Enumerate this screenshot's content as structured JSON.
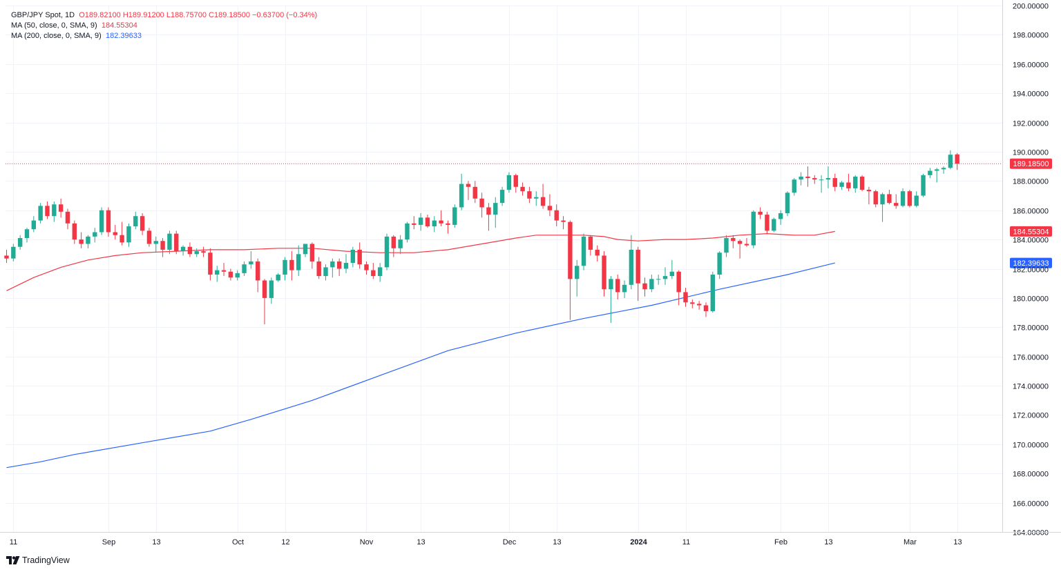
{
  "legend": {
    "symbol": "GBP/JPY Spot, 1D",
    "ohlc": "O189.82100  H189.91200  L188.75700  C189.18500  −0.63700 (−0.34%)",
    "ma50_label": "MA (50, close, 0, SMA, 9)",
    "ma50_value": "184.55304",
    "ma200_label": "MA (200, close, 0, SMA, 9)",
    "ma200_value": "182.39633"
  },
  "brand": {
    "name": "TradingView",
    "logo_icon": "tradingview-logo-icon"
  },
  "colors": {
    "up": "#22ab94",
    "down": "#f23645",
    "ma50": "#f23645",
    "ma200": "#2962ff",
    "grid": "#f0f3fa",
    "axis_text": "#131722"
  },
  "chart_data": {
    "type": "candlestick",
    "title": "GBP/JPY Spot, 1D",
    "ylim": [
      164,
      200
    ],
    "y_ticks": [
      "200.00000",
      "198.00000",
      "196.00000",
      "194.00000",
      "192.00000",
      "190.00000",
      "188.00000",
      "186.00000",
      "184.00000",
      "182.00000",
      "180.00000",
      "178.00000",
      "176.00000",
      "174.00000",
      "172.00000",
      "170.00000",
      "168.00000",
      "166.00000",
      "164.00000"
    ],
    "x_ticks": [
      {
        "label": "11",
        "index": 1,
        "bold": false
      },
      {
        "label": "Sep",
        "index": 15,
        "bold": false
      },
      {
        "label": "13",
        "index": 22,
        "bold": false
      },
      {
        "label": "Oct",
        "index": 34,
        "bold": false
      },
      {
        "label": "12",
        "index": 41,
        "bold": false
      },
      {
        "label": "Nov",
        "index": 53,
        "bold": false
      },
      {
        "label": "13",
        "index": 61,
        "bold": false
      },
      {
        "label": "Dec",
        "index": 74,
        "bold": false
      },
      {
        "label": "13",
        "index": 81,
        "bold": false
      },
      {
        "label": "2024",
        "index": 93,
        "bold": true
      },
      {
        "label": "11",
        "index": 100,
        "bold": false
      },
      {
        "label": "Feb",
        "index": 114,
        "bold": false
      },
      {
        "label": "13",
        "index": 121,
        "bold": false
      },
      {
        "label": "Mar",
        "index": 133,
        "bold": false
      },
      {
        "label": "13",
        "index": 140,
        "bold": false
      }
    ],
    "last_price": {
      "value": 189.185,
      "label": "189.18500"
    },
    "ma_markers": [
      {
        "name": "MA 50",
        "value": 184.55304,
        "label": "184.55304"
      },
      {
        "name": "MA 200",
        "value": 182.39633,
        "label": "182.39633"
      }
    ],
    "series": [
      {
        "name": "GBP/JPY OHLC",
        "type": "candlestick",
        "ohlc": [
          [
            182.9,
            183.3,
            182.4,
            182.7
          ],
          [
            182.7,
            183.7,
            182.5,
            183.5
          ],
          [
            183.5,
            184.3,
            183.3,
            184.1
          ],
          [
            184.1,
            184.8,
            183.8,
            184.7
          ],
          [
            184.7,
            185.6,
            184.5,
            185.3
          ],
          [
            185.3,
            186.5,
            185.1,
            186.3
          ],
          [
            186.3,
            186.6,
            185.4,
            185.6
          ],
          [
            185.6,
            186.6,
            185.2,
            186.4
          ],
          [
            186.4,
            186.8,
            185.5,
            185.9
          ],
          [
            185.9,
            186.1,
            184.7,
            185.1
          ],
          [
            185.1,
            185.3,
            183.7,
            184.0
          ],
          [
            184.0,
            184.5,
            183.4,
            183.7
          ],
          [
            183.7,
            184.3,
            183.4,
            184.2
          ],
          [
            184.2,
            184.8,
            183.8,
            184.5
          ],
          [
            184.5,
            186.2,
            184.3,
            186.0
          ],
          [
            186.0,
            186.2,
            184.2,
            184.5
          ],
          [
            184.5,
            185.0,
            184.0,
            184.3
          ],
          [
            184.3,
            185.2,
            183.6,
            183.8
          ],
          [
            183.8,
            185.1,
            183.5,
            184.9
          ],
          [
            184.9,
            185.9,
            184.7,
            185.6
          ],
          [
            185.6,
            185.8,
            184.3,
            184.6
          ],
          [
            184.6,
            184.8,
            183.5,
            183.7
          ],
          [
            183.7,
            184.2,
            183.1,
            183.9
          ],
          [
            183.9,
            184.1,
            182.8,
            183.3
          ],
          [
            183.3,
            184.6,
            183.0,
            184.4
          ],
          [
            184.4,
            184.6,
            183.0,
            183.2
          ],
          [
            183.2,
            183.6,
            182.9,
            183.5
          ],
          [
            183.5,
            183.8,
            182.8,
            183.0
          ],
          [
            183.0,
            183.4,
            182.8,
            183.2
          ],
          [
            183.2,
            183.5,
            182.8,
            183.1
          ],
          [
            183.1,
            183.4,
            181.2,
            181.6
          ],
          [
            181.6,
            182.2,
            181.1,
            181.9
          ],
          [
            181.9,
            182.4,
            181.5,
            181.8
          ],
          [
            181.8,
            182.0,
            181.2,
            181.4
          ],
          [
            181.4,
            181.9,
            181.2,
            181.7
          ],
          [
            181.7,
            182.5,
            181.5,
            182.3
          ],
          [
            182.3,
            183.2,
            182.0,
            182.5
          ],
          [
            182.5,
            182.7,
            180.4,
            181.2
          ],
          [
            181.2,
            181.3,
            178.2,
            180.0
          ],
          [
            180.0,
            181.4,
            179.6,
            181.2
          ],
          [
            181.2,
            181.7,
            181.1,
            181.6
          ],
          [
            181.6,
            182.8,
            181.2,
            182.6
          ],
          [
            182.6,
            183.2,
            181.2,
            181.9
          ],
          [
            181.9,
            183.6,
            181.5,
            183.0
          ],
          [
            183.0,
            183.7,
            182.8,
            183.7
          ],
          [
            183.7,
            183.8,
            182.0,
            182.5
          ],
          [
            182.5,
            182.8,
            181.3,
            181.5
          ],
          [
            181.5,
            182.3,
            181.2,
            182.1
          ],
          [
            182.1,
            182.7,
            181.4,
            182.5
          ],
          [
            182.5,
            182.7,
            181.5,
            182.0
          ],
          [
            182.0,
            183.0,
            181.7,
            182.4
          ],
          [
            182.4,
            183.5,
            182.1,
            183.3
          ],
          [
            183.3,
            183.8,
            182.0,
            182.3
          ],
          [
            182.3,
            182.5,
            181.6,
            181.9
          ],
          [
            181.9,
            182.4,
            181.3,
            181.5
          ],
          [
            181.5,
            182.4,
            181.1,
            182.1
          ],
          [
            182.1,
            184.4,
            181.9,
            184.2
          ],
          [
            184.2,
            184.3,
            182.8,
            183.4
          ],
          [
            183.4,
            184.3,
            183.0,
            184.0
          ],
          [
            184.0,
            185.2,
            183.8,
            185.1
          ],
          [
            185.1,
            185.6,
            184.7,
            185.0
          ],
          [
            185.0,
            185.8,
            184.6,
            185.5
          ],
          [
            185.5,
            185.7,
            184.8,
            184.9
          ],
          [
            184.9,
            185.6,
            184.5,
            185.3
          ],
          [
            185.3,
            186.0,
            184.9,
            185.1
          ],
          [
            185.1,
            185.3,
            184.4,
            185.0
          ],
          [
            185.0,
            186.4,
            184.8,
            186.2
          ],
          [
            186.2,
            188.5,
            186.0,
            187.8
          ],
          [
            187.8,
            188.0,
            186.7,
            187.6
          ],
          [
            187.6,
            188.0,
            186.5,
            186.8
          ],
          [
            186.8,
            187.2,
            185.5,
            186.2
          ],
          [
            186.2,
            186.5,
            184.6,
            185.7
          ],
          [
            185.7,
            186.9,
            184.8,
            186.5
          ],
          [
            186.5,
            187.6,
            186.3,
            187.4
          ],
          [
            187.4,
            188.6,
            187.2,
            188.4
          ],
          [
            188.4,
            188.5,
            187.2,
            187.6
          ],
          [
            187.6,
            187.9,
            187.0,
            187.3
          ],
          [
            187.3,
            187.6,
            186.5,
            186.8
          ],
          [
            186.8,
            187.3,
            186.3,
            186.9
          ],
          [
            186.9,
            187.8,
            186.1,
            186.3
          ],
          [
            186.3,
            187.1,
            185.6,
            186.0
          ],
          [
            186.0,
            186.4,
            184.9,
            185.3
          ],
          [
            185.3,
            185.6,
            184.7,
            185.2
          ],
          [
            185.2,
            185.3,
            178.5,
            181.3
          ],
          [
            181.3,
            182.6,
            180.1,
            182.2
          ],
          [
            182.2,
            184.4,
            181.9,
            184.2
          ],
          [
            184.2,
            184.3,
            182.9,
            183.3
          ],
          [
            183.3,
            183.6,
            182.5,
            182.9
          ],
          [
            182.9,
            183.2,
            180.1,
            180.6
          ],
          [
            180.6,
            181.5,
            178.3,
            181.3
          ],
          [
            181.3,
            181.6,
            179.9,
            180.4
          ],
          [
            180.4,
            181.2,
            180.0,
            180.9
          ],
          [
            180.9,
            184.3,
            180.6,
            183.3
          ],
          [
            183.3,
            183.5,
            179.8,
            181.0
          ],
          [
            181.0,
            181.4,
            180.1,
            180.6
          ],
          [
            180.6,
            181.6,
            180.4,
            181.3
          ],
          [
            181.3,
            181.6,
            180.9,
            181.3
          ],
          [
            181.3,
            182.1,
            180.9,
            181.5
          ],
          [
            181.5,
            182.6,
            181.3,
            181.8
          ],
          [
            181.8,
            181.9,
            179.5,
            180.4
          ],
          [
            180.4,
            180.7,
            179.4,
            179.7
          ],
          [
            179.7,
            179.9,
            179.3,
            179.6
          ],
          [
            179.6,
            179.8,
            179.2,
            179.5
          ],
          [
            179.5,
            179.7,
            178.7,
            179.1
          ],
          [
            179.1,
            181.8,
            179.0,
            181.6
          ],
          [
            181.6,
            183.2,
            181.3,
            183.1
          ],
          [
            183.1,
            184.3,
            182.8,
            184.1
          ],
          [
            184.1,
            184.3,
            183.4,
            183.9
          ],
          [
            183.9,
            184.0,
            182.7,
            183.7
          ],
          [
            183.7,
            184.1,
            183.5,
            183.6
          ],
          [
            183.6,
            186.0,
            183.4,
            185.9
          ],
          [
            185.9,
            186.2,
            185.4,
            185.7
          ],
          [
            185.7,
            185.9,
            184.4,
            184.6
          ],
          [
            184.6,
            185.5,
            184.5,
            185.4
          ],
          [
            185.4,
            186.0,
            185.0,
            185.8
          ],
          [
            185.8,
            187.3,
            185.6,
            187.2
          ],
          [
            187.2,
            188.2,
            187.0,
            188.1
          ],
          [
            188.1,
            188.6,
            187.7,
            188.3
          ],
          [
            188.3,
            189.0,
            187.6,
            188.2
          ],
          [
            188.2,
            188.4,
            187.8,
            188.1
          ],
          [
            188.1,
            188.4,
            187.2,
            188.1
          ],
          [
            188.1,
            189.0,
            187.5,
            188.2
          ],
          [
            188.2,
            188.5,
            187.3,
            187.6
          ],
          [
            187.6,
            188.0,
            187.4,
            187.9
          ],
          [
            187.9,
            188.5,
            187.3,
            187.5
          ],
          [
            187.5,
            188.4,
            187.2,
            188.3
          ],
          [
            188.3,
            188.4,
            187.3,
            187.4
          ],
          [
            187.4,
            187.6,
            186.4,
            187.3
          ],
          [
            187.3,
            187.4,
            186.2,
            186.4
          ],
          [
            186.4,
            187.2,
            185.2,
            187.1
          ],
          [
            187.1,
            187.4,
            186.4,
            186.5
          ],
          [
            186.5,
            187.1,
            186.1,
            186.3
          ],
          [
            186.3,
            187.5,
            186.2,
            187.3
          ],
          [
            187.3,
            187.4,
            186.2,
            186.3
          ],
          [
            186.3,
            187.3,
            186.2,
            187.0
          ],
          [
            187.0,
            188.5,
            186.9,
            188.4
          ],
          [
            188.4,
            188.9,
            188.2,
            188.7
          ],
          [
            188.7,
            188.9,
            187.9,
            188.8
          ],
          [
            188.8,
            189.0,
            188.5,
            188.9
          ],
          [
            188.9,
            190.1,
            188.8,
            189.8
          ],
          [
            189.82,
            189.912,
            188.757,
            189.185
          ]
        ]
      },
      {
        "name": "MA (50, close, 0, SMA, 9)",
        "type": "line",
        "color": "#f23645",
        "points": [
          [
            0,
            180.5
          ],
          [
            4,
            181.4
          ],
          [
            8,
            182.1
          ],
          [
            12,
            182.6
          ],
          [
            16,
            182.9
          ],
          [
            20,
            183.1
          ],
          [
            25,
            183.2
          ],
          [
            30,
            183.3
          ],
          [
            35,
            183.3
          ],
          [
            40,
            183.4
          ],
          [
            45,
            183.4
          ],
          [
            50,
            183.2
          ],
          [
            55,
            183.1
          ],
          [
            60,
            183.1
          ],
          [
            65,
            183.3
          ],
          [
            70,
            183.7
          ],
          [
            75,
            184.1
          ],
          [
            78,
            184.3
          ],
          [
            80,
            184.3
          ],
          [
            85,
            184.3
          ],
          [
            88,
            184.2
          ],
          [
            90,
            184.0
          ],
          [
            93,
            183.9
          ],
          [
            97,
            184.0
          ],
          [
            100,
            184.0
          ],
          [
            104,
            184.1
          ],
          [
            108,
            184.3
          ],
          [
            112,
            184.4
          ],
          [
            116,
            184.3
          ],
          [
            119,
            184.3
          ],
          [
            122,
            184.55304
          ]
        ]
      },
      {
        "name": "MA (200, close, 0, SMA, 9)",
        "type": "line",
        "color": "#2962ff",
        "points": [
          [
            0,
            168.4
          ],
          [
            5,
            168.8
          ],
          [
            10,
            169.3
          ],
          [
            20,
            170.1
          ],
          [
            30,
            170.9
          ],
          [
            36,
            171.7
          ],
          [
            45,
            173.0
          ],
          [
            55,
            174.7
          ],
          [
            65,
            176.4
          ],
          [
            75,
            177.6
          ],
          [
            85,
            178.6
          ],
          [
            95,
            179.5
          ],
          [
            105,
            180.6
          ],
          [
            115,
            181.6
          ],
          [
            122,
            182.39633
          ]
        ]
      }
    ]
  }
}
